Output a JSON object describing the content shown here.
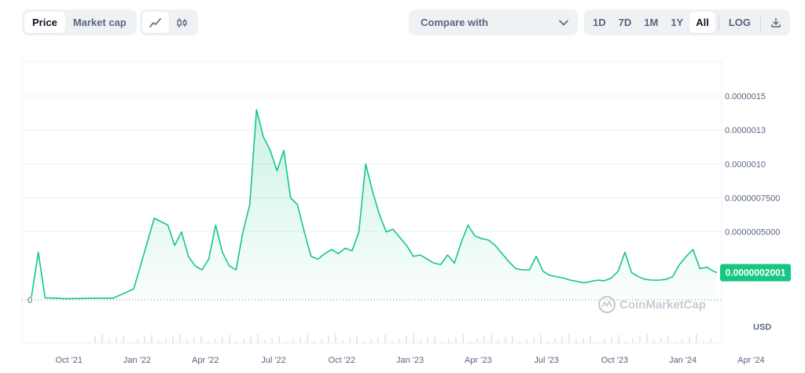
{
  "toolbar": {
    "type_tabs": [
      "Price",
      "Market cap"
    ],
    "active_type": "Price",
    "chart_style_icons": [
      "line-chart-icon",
      "candlestick-icon"
    ],
    "compare": {
      "label": "Compare with",
      "icon": "chevron-down-icon"
    },
    "ranges": [
      "1D",
      "7D",
      "1M",
      "1Y",
      "All"
    ],
    "active_range": "All",
    "log_label": "LOG",
    "download_icon": "download-icon"
  },
  "watermark": "CoinMarketCap",
  "currency_label": "USD",
  "colors": {
    "line": "#16c784",
    "price_tag": "#16c784",
    "grid": "#eff2f5",
    "axis_text": "#58667e"
  },
  "chart_data": {
    "type": "area",
    "title": "",
    "xlabel": "",
    "ylabel": "",
    "x_ticks": [
      "Oct '21",
      "Jan '22",
      "Apr '22",
      "Jul '22",
      "Oct '22",
      "Jan '23",
      "Apr '23",
      "Jul '23",
      "Oct '23",
      "Jan '24",
      "Apr '24"
    ],
    "y_ticks": [
      "0.0000015",
      "0.0000013",
      "0.0000010",
      "0.0000007500",
      "0.0000005000"
    ],
    "y_tick_values": [
      1.5e-06,
      1.25e-06,
      1e-06,
      7.5e-07,
      5e-07
    ],
    "baseline_label": "0",
    "ylim": [
      0,
      1.7e-06
    ],
    "current_price": "0.0000002001",
    "current_price_value": 2.001e-07,
    "series": [
      {
        "x": [
          0.0,
          0.1,
          0.2,
          0.35,
          0.5,
          0.7,
          0.9,
          1.2,
          1.5,
          1.8,
          2.0,
          2.1,
          2.2,
          2.3,
          2.4,
          2.5,
          2.6,
          2.7,
          2.8,
          2.9,
          3.0,
          3.1,
          3.2,
          3.3,
          3.4,
          3.5,
          3.6,
          3.7,
          3.8,
          3.9,
          4.0,
          4.1,
          4.2,
          4.3,
          4.4,
          4.5,
          4.6,
          4.7,
          4.8,
          4.9,
          5.0,
          5.1,
          5.2,
          5.3,
          5.4,
          5.5,
          5.6,
          5.7,
          5.8,
          5.9,
          6.0,
          6.1,
          6.2,
          6.3,
          6.4,
          6.5,
          6.6,
          6.7,
          6.8,
          6.9,
          7.0,
          7.1,
          7.2,
          7.3,
          7.4,
          7.5,
          7.6,
          7.7,
          7.8,
          7.9,
          8.0,
          8.1,
          8.2,
          8.3,
          8.4,
          8.5,
          8.6,
          8.7,
          8.8,
          8.9,
          9.0,
          9.1,
          9.2,
          9.3,
          9.4,
          9.5,
          9.6,
          9.7,
          9.8,
          9.9,
          10.0,
          10.05
        ],
        "values": [
          2e-08,
          3.5e-07,
          1.5e-08,
          1.2e-08,
          8e-09,
          1e-08,
          1.2e-08,
          1.2e-08,
          8e-08,
          6e-07,
          5.5e-07,
          4e-07,
          5e-07,
          3.2e-07,
          2.5e-07,
          2.2e-07,
          3e-07,
          5.5e-07,
          3.5e-07,
          2.5e-07,
          2.2e-07,
          5e-07,
          7e-07,
          1.4e-06,
          1.2e-06,
          1.1e-06,
          9.5e-07,
          1.1e-06,
          7.5e-07,
          7e-07,
          5e-07,
          3.2e-07,
          3e-07,
          3.4e-07,
          3.7e-07,
          3.4e-07,
          3.8e-07,
          3.6e-07,
          5e-07,
          1e-06,
          8e-07,
          6.3e-07,
          5e-07,
          5.2e-07,
          4.6e-07,
          4e-07,
          3.2e-07,
          3.3e-07,
          3e-07,
          2.7e-07,
          2.6e-07,
          3.3e-07,
          2.7e-07,
          4.2e-07,
          5.5e-07,
          4.7e-07,
          4.5e-07,
          4.4e-07,
          4e-07,
          3.4e-07,
          2.8e-07,
          2.3e-07,
          2.2e-07,
          2.2e-07,
          3.2e-07,
          2.1e-07,
          1.8e-07,
          1.7e-07,
          1.6e-07,
          1.45e-07,
          1.35e-07,
          1.25e-07,
          1.35e-07,
          1.45e-07,
          1.4e-07,
          1.6e-07,
          2.1e-07,
          3.5e-07,
          2e-07,
          1.7e-07,
          1.5e-07,
          1.45e-07,
          1.45e-07,
          1.5e-07,
          1.7e-07,
          2.6e-07,
          3.2e-07,
          3.7e-07,
          2.3e-07,
          2.4e-07,
          2.1e-07,
          2.001e-07
        ]
      }
    ]
  }
}
